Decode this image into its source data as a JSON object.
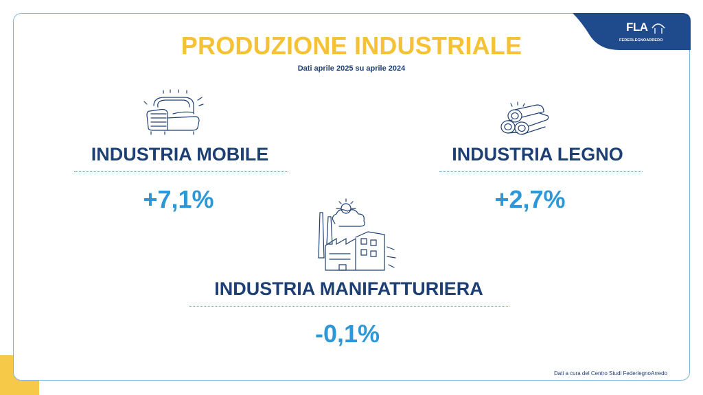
{
  "header": {
    "title": "PRODUZIONE INDUSTRIALE",
    "subtitle": "Dati aprile 2025 su aprile 2024"
  },
  "logo": {
    "name": "FLA",
    "subtitle": "FEDERLEGNOARREDO"
  },
  "sectors": {
    "mobile": {
      "label": "INDUSTRIA MOBILE",
      "value": "+7,1%",
      "icon": "armchair-icon"
    },
    "legno": {
      "label": "INDUSTRIA LEGNO",
      "value": "+2,7%",
      "icon": "logs-icon"
    },
    "manifatturiera": {
      "label": "INDUSTRIA MANIFATTURIERA",
      "value": "-0,1%",
      "icon": "factory-icon"
    }
  },
  "footnote": "Dati a cura del Centro Studi FederlegnoArredo",
  "colors": {
    "title": "#f5c236",
    "label": "#1d3f73",
    "value": "#2e97d8",
    "brand": "#1f4a8c",
    "accent_corner": "#f7c948"
  }
}
